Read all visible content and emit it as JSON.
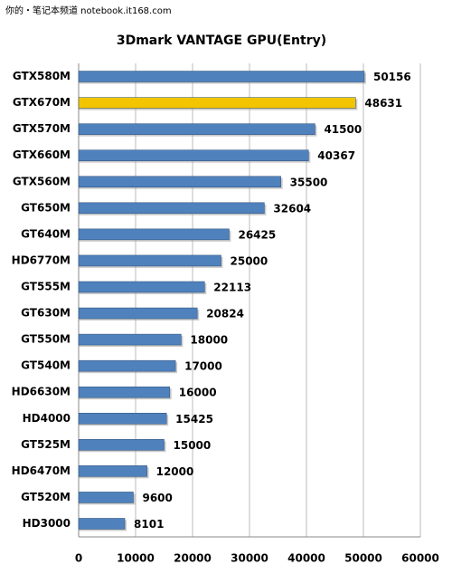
{
  "watermark": "你的・笔记本频道 notebook.it168.com",
  "chart_data": {
    "type": "hbar",
    "title": "3Dmark VANTAGE GPU(Entry)",
    "categories": [
      "GTX580M",
      "GTX670M",
      "GTX570M",
      "GTX660M",
      "GTX560M",
      "GT650M",
      "GT640M",
      "HD6770M",
      "GT555M",
      "GT630M",
      "GT550M",
      "GT540M",
      "HD6630M",
      "HD4000",
      "GT525M",
      "HD6470M",
      "GT520M",
      "HD3000"
    ],
    "values": [
      50156,
      48631,
      41500,
      40367,
      35500,
      32604,
      26425,
      25000,
      22113,
      20824,
      18000,
      17000,
      16000,
      15425,
      15000,
      12000,
      9600,
      8101
    ],
    "colors": [
      "#4f81bd",
      "#f2c500",
      "#4f81bd",
      "#4f81bd",
      "#4f81bd",
      "#4f81bd",
      "#4f81bd",
      "#4f81bd",
      "#4f81bd",
      "#4f81bd",
      "#4f81bd",
      "#4f81bd",
      "#4f81bd",
      "#4f81bd",
      "#4f81bd",
      "#4f81bd",
      "#4f81bd",
      "#4f81bd"
    ],
    "xlim": [
      0,
      60000
    ],
    "xticks": [
      0,
      10000,
      20000,
      30000,
      40000,
      50000,
      60000
    ],
    "grid": true
  }
}
